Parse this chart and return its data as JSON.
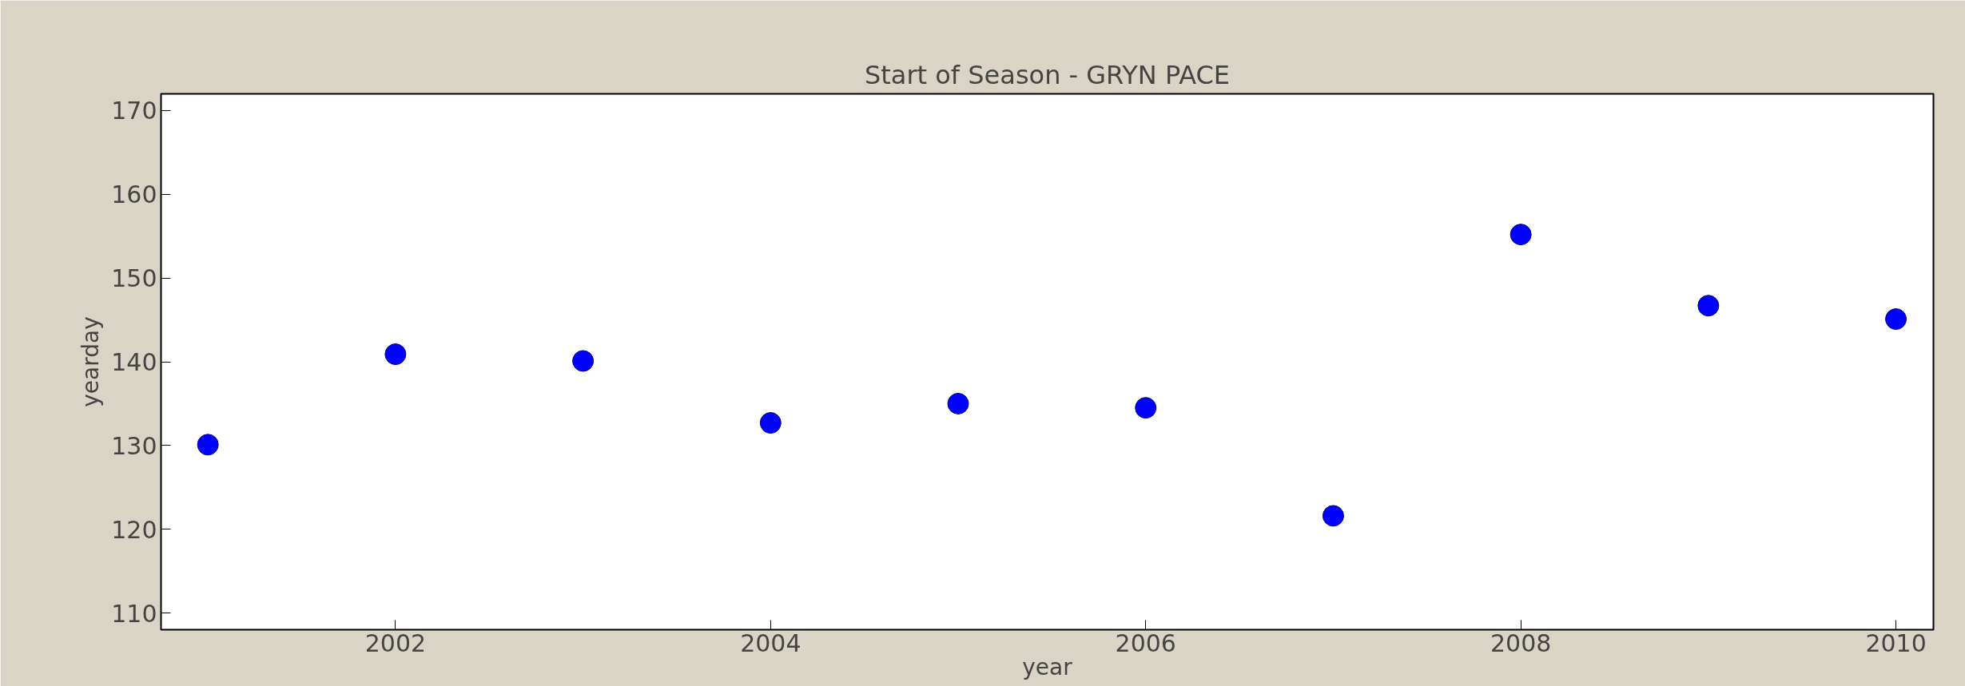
{
  "chart_data": {
    "type": "scatter",
    "title": "Start of Season - GRYN PACE",
    "xlabel": "year",
    "ylabel": "yearday",
    "x": [
      2001,
      2002,
      2003,
      2004,
      2005,
      2006,
      2007,
      2008,
      2009,
      2010
    ],
    "series": [
      {
        "color": "#0000ff",
        "values": [
          130.1,
          140.9,
          140.1,
          132.7,
          135.0,
          134.5,
          121.6,
          155.2,
          146.7,
          145.1
        ]
      }
    ],
    "xlim": [
      2000.75,
      2010.2
    ],
    "xticks": [
      2002,
      2004,
      2006,
      2008,
      2010
    ],
    "ylim": [
      108,
      172
    ],
    "yticks": [
      110,
      120,
      130,
      140,
      150,
      160,
      170
    ],
    "marker": "circle",
    "grid": false
  }
}
